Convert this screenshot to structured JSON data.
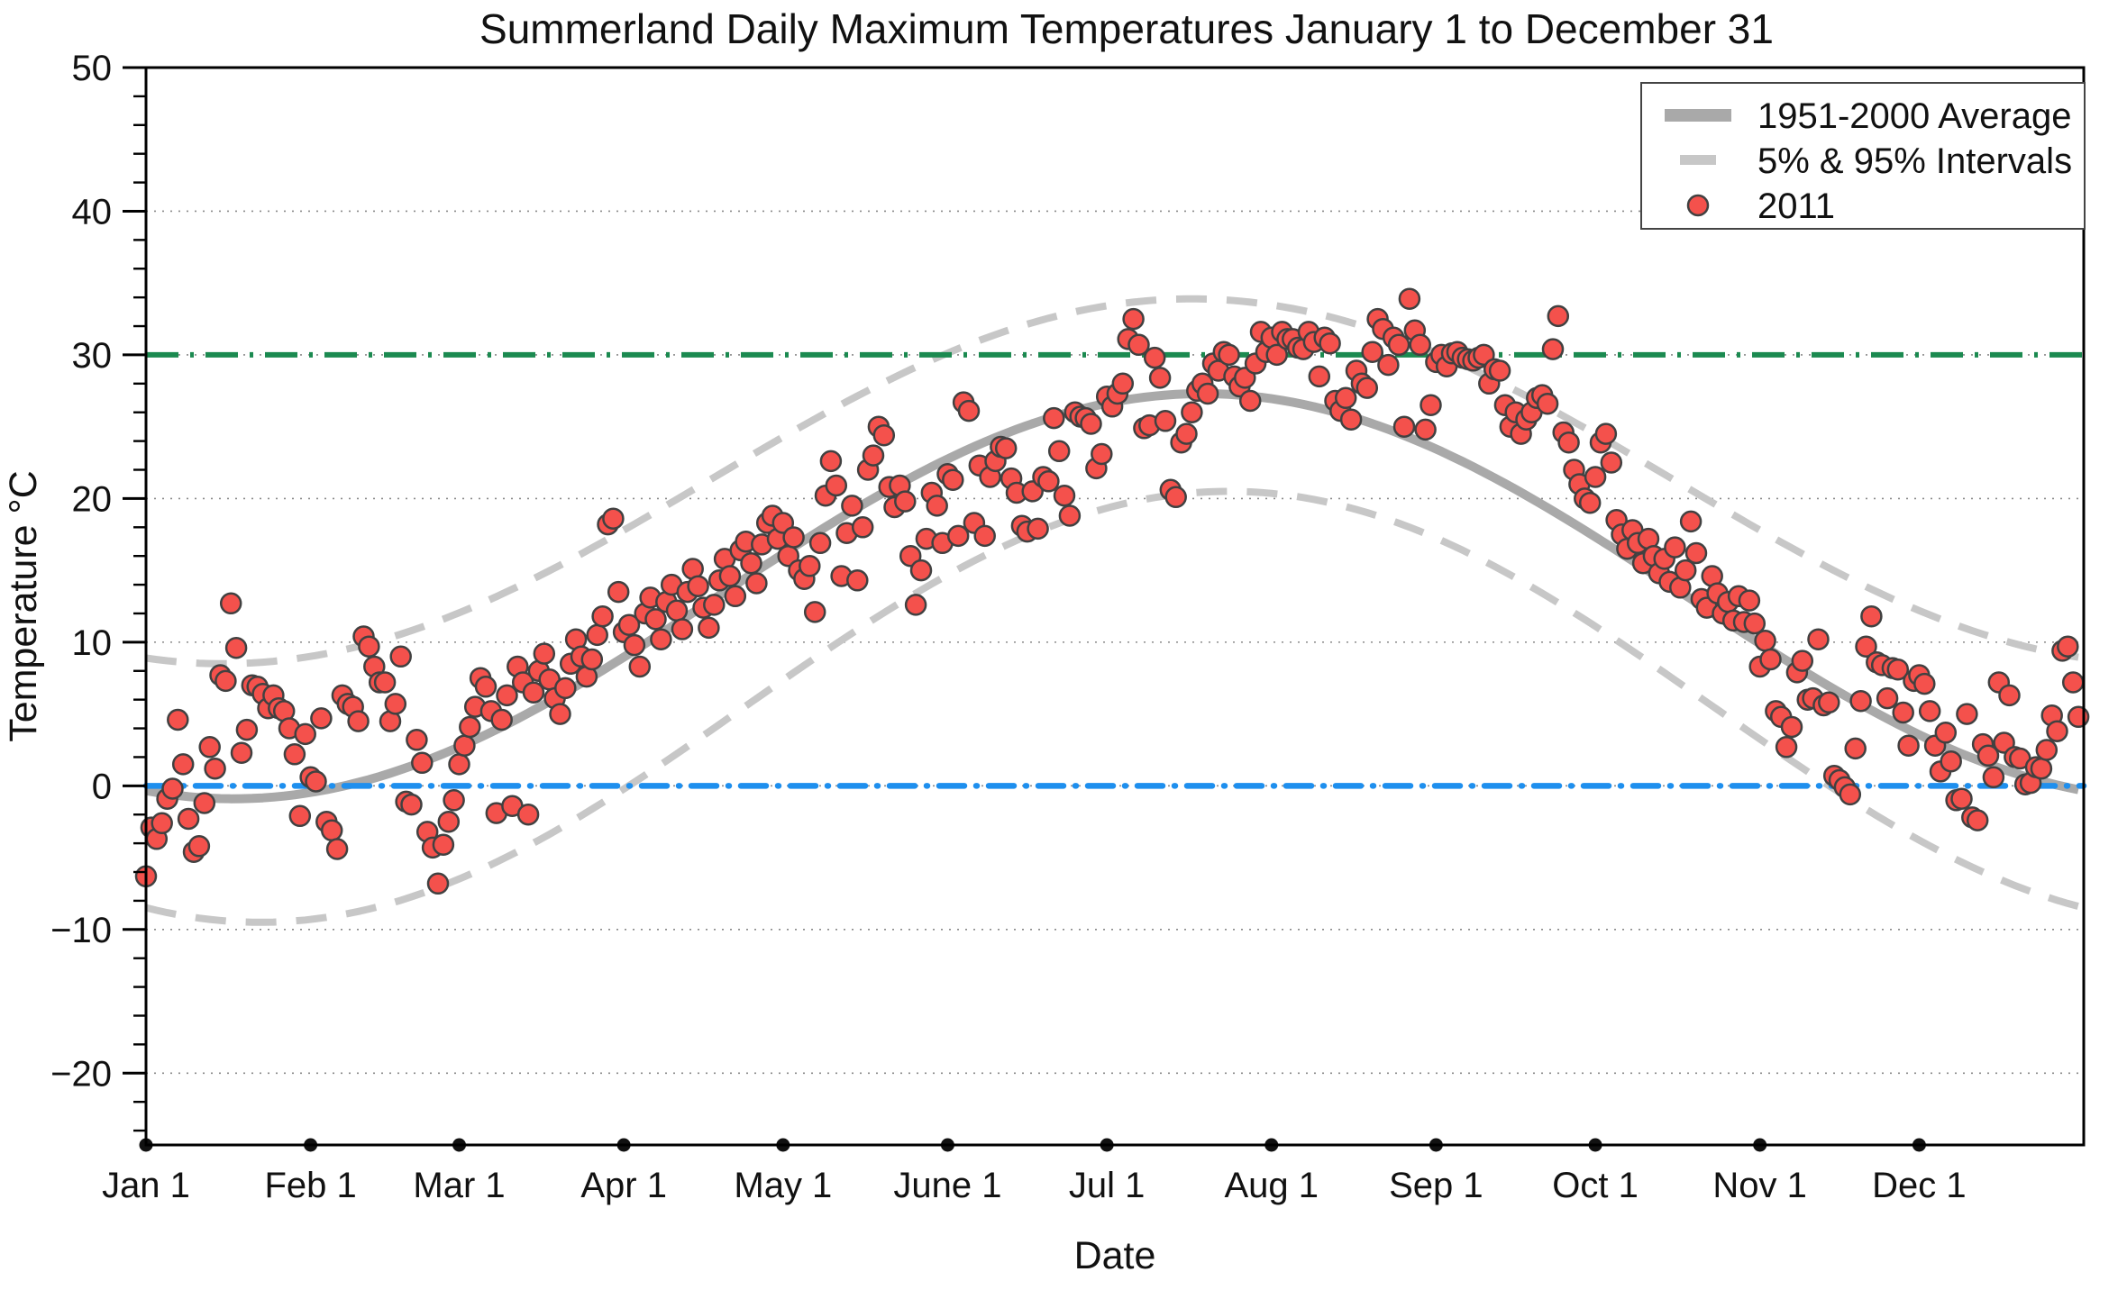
{
  "chart_data": {
    "type": "scatter",
    "title": "Summerland Daily Maximum Temperatures January 1 to December 31",
    "xlabel": "Date",
    "ylabel": "Temperature °C",
    "ylim": [
      -25,
      50
    ],
    "xlim_days": [
      0,
      365
    ],
    "grid": "dotted horizontal lines at multiples of 10",
    "legend_position": "top-right",
    "legend": [
      {
        "label": "1951-2000 Average",
        "marker": "thick-gray-line"
      },
      {
        "label": "5% & 95% Intervals",
        "marker": "gray-dash"
      },
      {
        "label": "2011",
        "marker": "red-dot"
      }
    ],
    "y_axis": {
      "ticks": [
        {
          "value": 50,
          "label": "50"
        },
        {
          "value": 40,
          "label": "40"
        },
        {
          "value": 30,
          "label": "30"
        },
        {
          "value": 20,
          "label": "20"
        },
        {
          "value": 10,
          "label": "10"
        },
        {
          "value": 0,
          "label": "0"
        },
        {
          "value": -10,
          "label": "−10"
        },
        {
          "value": -20,
          "label": "−20"
        }
      ],
      "minor_step": 2,
      "gridline_values": [
        40,
        30,
        20,
        10,
        0,
        -10,
        -20
      ]
    },
    "x_axis": {
      "ticks": [
        {
          "label": "Jan 1",
          "day": 0
        },
        {
          "label": "Feb 1",
          "day": 31
        },
        {
          "label": "Mar 1",
          "day": 59
        },
        {
          "label": "Apr 1",
          "day": 90
        },
        {
          "label": "May 1",
          "day": 120
        },
        {
          "label": "June 1",
          "day": 151
        },
        {
          "label": "Jul 1",
          "day": 181
        },
        {
          "label": "Aug 1",
          "day": 212
        },
        {
          "label": "Sep 1",
          "day": 243
        },
        {
          "label": "Oct 1",
          "day": 273
        },
        {
          "label": "Nov 1",
          "day": 304
        },
        {
          "label": "Dec 1",
          "day": 334
        }
      ]
    },
    "reference_lines": [
      {
        "id": "threshold-30c",
        "value": 30,
        "color": "#1b8a50",
        "pattern": "dash-dot",
        "width": 6
      },
      {
        "id": "zero-line",
        "value": 0,
        "color": "#1e8fee",
        "pattern": "dash-dot-round",
        "width": 6.5
      }
    ],
    "curves": [
      {
        "id": "average-curve",
        "name": "1951-2000 Average",
        "model": "cosine",
        "mean": 13.2,
        "amplitude": 14.1,
        "peak_day": 199,
        "jan1_value": -0.3,
        "peak_value": 27.3,
        "dec31_value": -0.3,
        "style": "solid",
        "width": 10,
        "color": "#a9a9a9"
      },
      {
        "id": "upper-interval-curve",
        "name": "95% Interval",
        "model": "cosine",
        "mean": 21.2,
        "amplitude": 12.7,
        "peak_day": 197,
        "jan1_value": 9.0,
        "peak_value": 33.9,
        "dec31_value": 9.0,
        "style": "dashed",
        "width": 8,
        "color": "#c7c7c7"
      },
      {
        "id": "lower-interval-curve",
        "name": "5% Interval",
        "model": "cosine",
        "mean": 5.5,
        "amplitude": 15.0,
        "peak_day": 204,
        "jan1_value": -8.5,
        "peak_value": 20.5,
        "dec31_value": -8.4,
        "style": "dashed",
        "width": 8,
        "color": "#c7c7c7"
      }
    ],
    "series_2011": {
      "name": "2011",
      "unit": "°C",
      "month_order": [
        "jan",
        "feb",
        "mar",
        "apr",
        "may",
        "jun",
        "jul",
        "aug",
        "sep",
        "oct",
        "nov",
        "dec"
      ],
      "monthly_values": {
        "jan": [
          -6.3,
          -2.9,
          -3.7,
          -2.6,
          -0.9,
          -0.2,
          4.6,
          1.5,
          -2.3,
          -4.6,
          -4.2,
          -1.2,
          2.7,
          1.2,
          7.7,
          7.3,
          12.7,
          9.6,
          2.3,
          3.9,
          7.0,
          6.9,
          6.4,
          5.4,
          6.3,
          5.4,
          5.2,
          4.0,
          2.2,
          -2.1,
          3.6
        ],
        "feb": [
          0.6,
          0.3,
          4.7,
          -2.5,
          -3.1,
          -4.4,
          6.3,
          5.7,
          5.5,
          4.5,
          10.4,
          9.7,
          8.3,
          7.2,
          7.2,
          4.5,
          5.7,
          9.0,
          -1.1,
          -1.3,
          3.2,
          1.6,
          -3.2,
          -4.3,
          -6.8,
          -4.1,
          -2.5,
          -1.0
        ],
        "mar": [
          1.5,
          2.8,
          4.1,
          5.5,
          7.5,
          6.9,
          5.2,
          -1.9,
          4.6,
          6.3,
          -1.4,
          8.3,
          7.2,
          -2.0,
          6.5,
          8.0,
          9.2,
          7.4,
          6.1,
          5.0,
          6.8,
          8.5,
          10.2,
          9.0,
          7.6,
          8.8,
          10.5,
          11.8,
          18.2,
          18.6,
          13.5
        ],
        "apr": [
          10.7,
          11.2,
          9.8,
          8.3,
          12.0,
          13.1,
          11.6,
          10.2,
          12.8,
          14.0,
          12.2,
          10.9,
          13.5,
          15.1,
          13.9,
          12.4,
          11.0,
          12.6,
          14.3,
          15.8,
          14.6,
          13.2,
          16.4,
          17.0,
          15.5,
          14.1,
          16.8,
          18.3,
          18.8,
          17.2
        ],
        "may": [
          18.3,
          16.0,
          17.3,
          15.0,
          14.4,
          15.3,
          12.1,
          16.9,
          20.2,
          22.6,
          20.9,
          14.6,
          17.6,
          19.5,
          14.3,
          18.0,
          22.0,
          23.0,
          25.0,
          24.4,
          20.8,
          19.4,
          20.9,
          19.8,
          16.0,
          12.6,
          15.0,
          17.2,
          20.4,
          19.5,
          16.9
        ],
        "jun": [
          21.7,
          21.3,
          17.4,
          26.7,
          26.1,
          18.3,
          22.3,
          17.4,
          21.5,
          22.6,
          23.6,
          23.5,
          21.4,
          20.4,
          18.1,
          17.7,
          20.5,
          17.9,
          21.5,
          21.2,
          25.6,
          23.3,
          20.2,
          18.8,
          26.0,
          25.7,
          25.6,
          25.2,
          22.1,
          23.1
        ],
        "jul": [
          27.1,
          26.4,
          27.3,
          28.0,
          31.1,
          32.5,
          30.7,
          24.9,
          25.1,
          29.8,
          28.4,
          25.4,
          20.6,
          20.1,
          23.9,
          24.5,
          26.0,
          27.5,
          28.0,
          27.3,
          29.4,
          28.9,
          30.2,
          30.0,
          28.5,
          27.8,
          28.4,
          26.8,
          29.4,
          31.6,
          30.2
        ],
        "aug": [
          31.2,
          30.0,
          31.6,
          31.1,
          31.1,
          30.5,
          30.4,
          31.6,
          30.9,
          28.5,
          31.2,
          30.8,
          26.8,
          26.1,
          27.0,
          25.5,
          28.9,
          28.0,
          27.7,
          30.2,
          32.5,
          31.8,
          29.3,
          31.2,
          30.7,
          25.0,
          33.9,
          31.7,
          30.7,
          24.8,
          26.5
        ],
        "sep": [
          29.5,
          30.0,
          29.2,
          30.1,
          30.2,
          29.8,
          29.7,
          29.6,
          29.8,
          30.0,
          28.0,
          29.0,
          28.9,
          26.5,
          25.0,
          26.0,
          24.5,
          25.5,
          26.0,
          27.0,
          27.2,
          26.6,
          30.4,
          32.7,
          24.6,
          23.9,
          22.0,
          21.0,
          20.0,
          19.7
        ],
        "oct": [
          21.5,
          23.9,
          24.5,
          22.5,
          18.5,
          17.5,
          16.5,
          17.8,
          16.9,
          15.5,
          17.2,
          16.0,
          14.8,
          15.8,
          14.2,
          16.6,
          13.8,
          15.0,
          18.4,
          16.2,
          13.0,
          12.4,
          14.6,
          13.4,
          12.0,
          12.8,
          11.5,
          13.2,
          11.4,
          12.9,
          11.3
        ],
        "nov": [
          8.3,
          10.1,
          8.8,
          5.2,
          4.8,
          2.7,
          4.1,
          7.9,
          8.7,
          6.0,
          6.1,
          10.2,
          5.6,
          5.8,
          0.7,
          0.4,
          -0.1,
          -0.6,
          2.6,
          5.9,
          9.7,
          11.8,
          8.6,
          8.4,
          6.1,
          8.2,
          8.1,
          5.1,
          2.8,
          7.3
        ],
        "dec": [
          7.7,
          7.1,
          5.2,
          2.8,
          1.0,
          3.7,
          1.7,
          -1.0,
          -0.9,
          5.0,
          -2.2,
          -2.4,
          2.9,
          2.1,
          0.6,
          7.2,
          3.0,
          6.3,
          2.0,
          1.9,
          0.1,
          0.2,
          1.3,
          1.2,
          2.5,
          4.9,
          3.8,
          9.4,
          9.7,
          7.2,
          4.8
        ]
      }
    },
    "point_style": {
      "fill": "#f4514c",
      "stroke": "#414141",
      "radius": 11
    }
  },
  "colors": {
    "background": "#ffffff",
    "average_line": "#a9a9a9",
    "interval_line": "#c7c7c7",
    "threshold_green": "#1b8a50",
    "zero_blue": "#1e8fee",
    "point_red": "#f4514c",
    "point_outline": "#414141",
    "gridline": "#8a8a8a",
    "axis": "#000000",
    "month_marker": "#111111"
  }
}
